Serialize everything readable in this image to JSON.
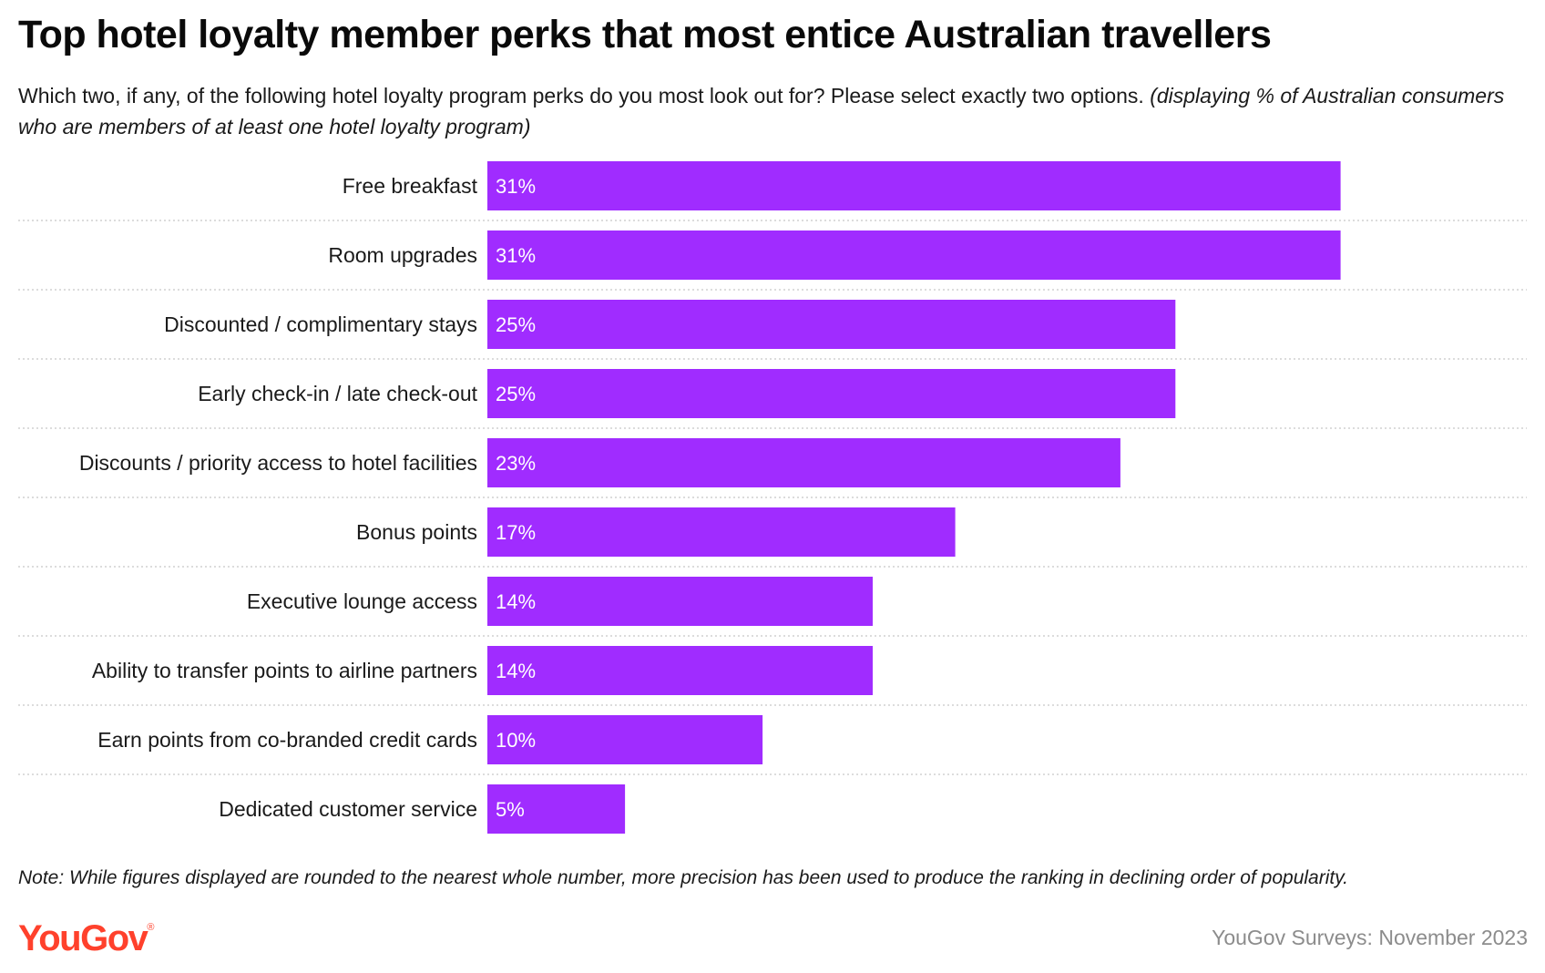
{
  "title": "Top hotel loyalty member perks that most entice Australian travellers",
  "subtitle": {
    "question": "Which two, if any, of the following hotel loyalty program perks do you most look out for? Please select exactly two options.",
    "qualifier": "(displaying % of Australian consumers who are members of at least one hotel loyalty program)"
  },
  "chart_data": {
    "type": "bar",
    "orientation": "horizontal",
    "categories": [
      "Free breakfast",
      "Room upgrades",
      "Discounted / complimentary stays",
      "Early check-in / late check-out",
      "Discounts / priority access to hotel facilities",
      "Bonus points",
      "Executive lounge access",
      "Ability to transfer points to airline partners",
      "Earn points from co-branded credit cards",
      "Dedicated customer service"
    ],
    "values": [
      31,
      31,
      25,
      25,
      23,
      17,
      14,
      14,
      10,
      5
    ],
    "value_labels": [
      "31%",
      "31%",
      "25%",
      "25%",
      "23%",
      "17%",
      "14%",
      "14%",
      "10%",
      "5%"
    ],
    "unit": "%",
    "xlim": [
      0,
      33
    ],
    "grid": "dotted row separators",
    "legend": "none",
    "bar_color": "#a02cff",
    "label_color": "#ffffff"
  },
  "note": "Note: While figures displayed are rounded to the nearest whole number, more precision has been used to produce the ranking in declining order of popularity.",
  "footer": {
    "logo": "YouGov",
    "logo_mark": "®",
    "source": "YouGov Surveys: November 2023"
  },
  "colors": {
    "brand": "#ff412c",
    "bar": "#a02cff",
    "separator": "#c8c8c8",
    "source_text": "#8c8c8c"
  }
}
